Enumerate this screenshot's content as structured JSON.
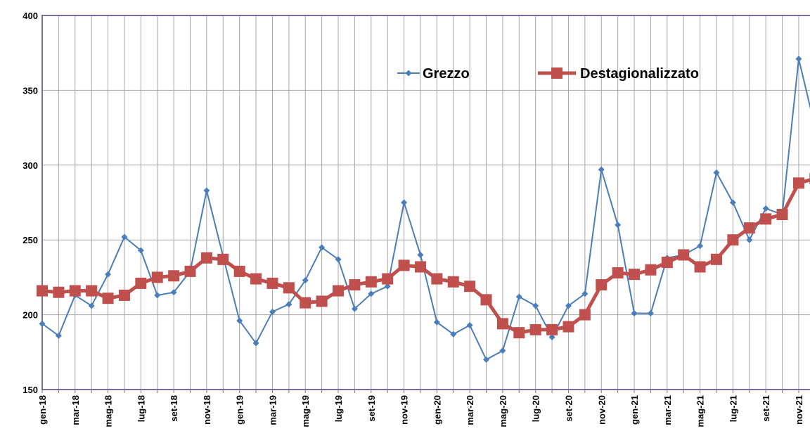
{
  "chart_data": {
    "type": "line",
    "categories": [
      "gen-18",
      null,
      "mar-18",
      null,
      "mag-18",
      null,
      "lug-18",
      null,
      "set-18",
      null,
      "nov-18",
      null,
      "gen-19",
      null,
      "mar-19",
      null,
      "mag-19",
      null,
      "lug-19",
      null,
      "set-19",
      null,
      "nov-19",
      null,
      "gen-20",
      null,
      "mar-20",
      null,
      "mag-20",
      null,
      "lug-20",
      null,
      "set-20",
      null,
      "nov-20",
      null,
      "gen-21",
      null,
      "mar-21",
      null,
      "mag-21",
      null,
      "lug-21",
      null,
      "set-21",
      null,
      "nov-21",
      null
    ],
    "series": [
      {
        "name": "Grezzo",
        "color": "#4a7ebb",
        "values": [
          194,
          186,
          213,
          206,
          227,
          252,
          243,
          213,
          215,
          229,
          283,
          239,
          196,
          181,
          202,
          207,
          223,
          245,
          237,
          204,
          214,
          219,
          275,
          240,
          195,
          187,
          193,
          170,
          176,
          212,
          206,
          185,
          206,
          214,
          297,
          260,
          201,
          201,
          238,
          240,
          246,
          295,
          275,
          250,
          271,
          267,
          371,
          325
        ]
      },
      {
        "name": "Destagionalizzato",
        "color": "#c0504d",
        "values": [
          216,
          215,
          216,
          216,
          211,
          213,
          221,
          225,
          226,
          229,
          238,
          237,
          229,
          224,
          221,
          218,
          208,
          209,
          216,
          220,
          222,
          224,
          233,
          232,
          224,
          222,
          219,
          210,
          194,
          188,
          190,
          190,
          192,
          200,
          220,
          228,
          227,
          230,
          235,
          240,
          232,
          237,
          250,
          258,
          264,
          267,
          288,
          291
        ]
      }
    ],
    "ylim": [
      150,
      400
    ],
    "yticks": [
      150,
      200,
      250,
      300,
      350,
      400
    ],
    "grid": true
  }
}
